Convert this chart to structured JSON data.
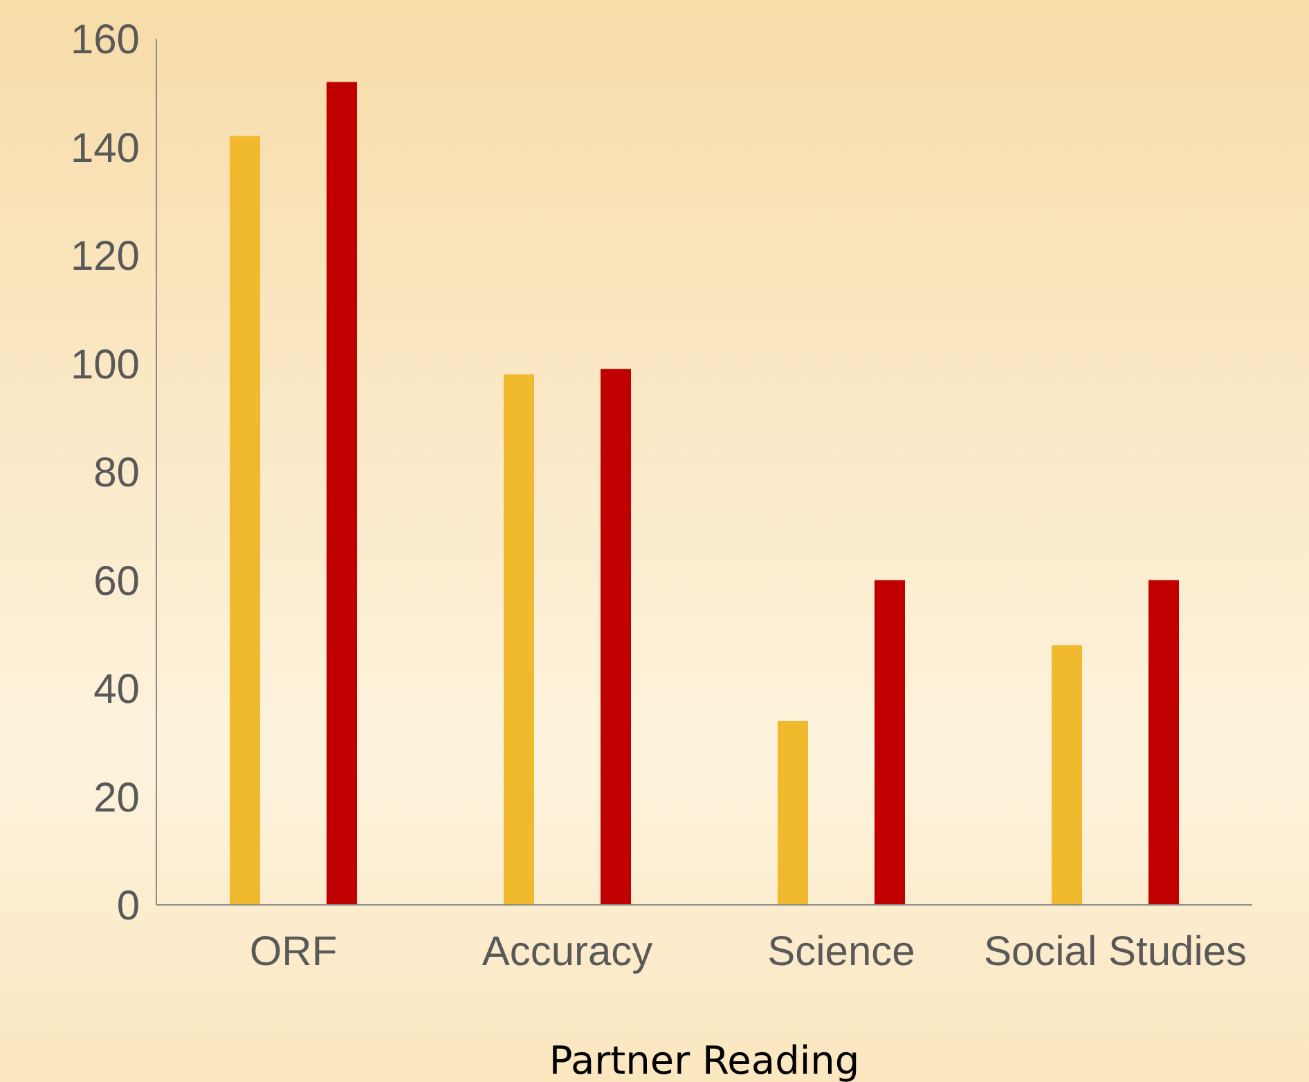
{
  "chart_data": {
    "type": "bar",
    "xlabel": "Partner Reading",
    "categories": [
      "ORF",
      "Accuracy",
      "Science",
      "Social Studies"
    ],
    "series": [
      {
        "color": "#f0b92e",
        "values": [
          142,
          98,
          34,
          48
        ]
      },
      {
        "color": "#c00000",
        "values": [
          152,
          99,
          60,
          60
        ]
      }
    ],
    "ylim": [
      0,
      160
    ],
    "yticks": [
      0,
      20,
      40,
      60,
      80,
      100,
      120,
      140,
      160
    ],
    "grid": false,
    "legend": false
  }
}
